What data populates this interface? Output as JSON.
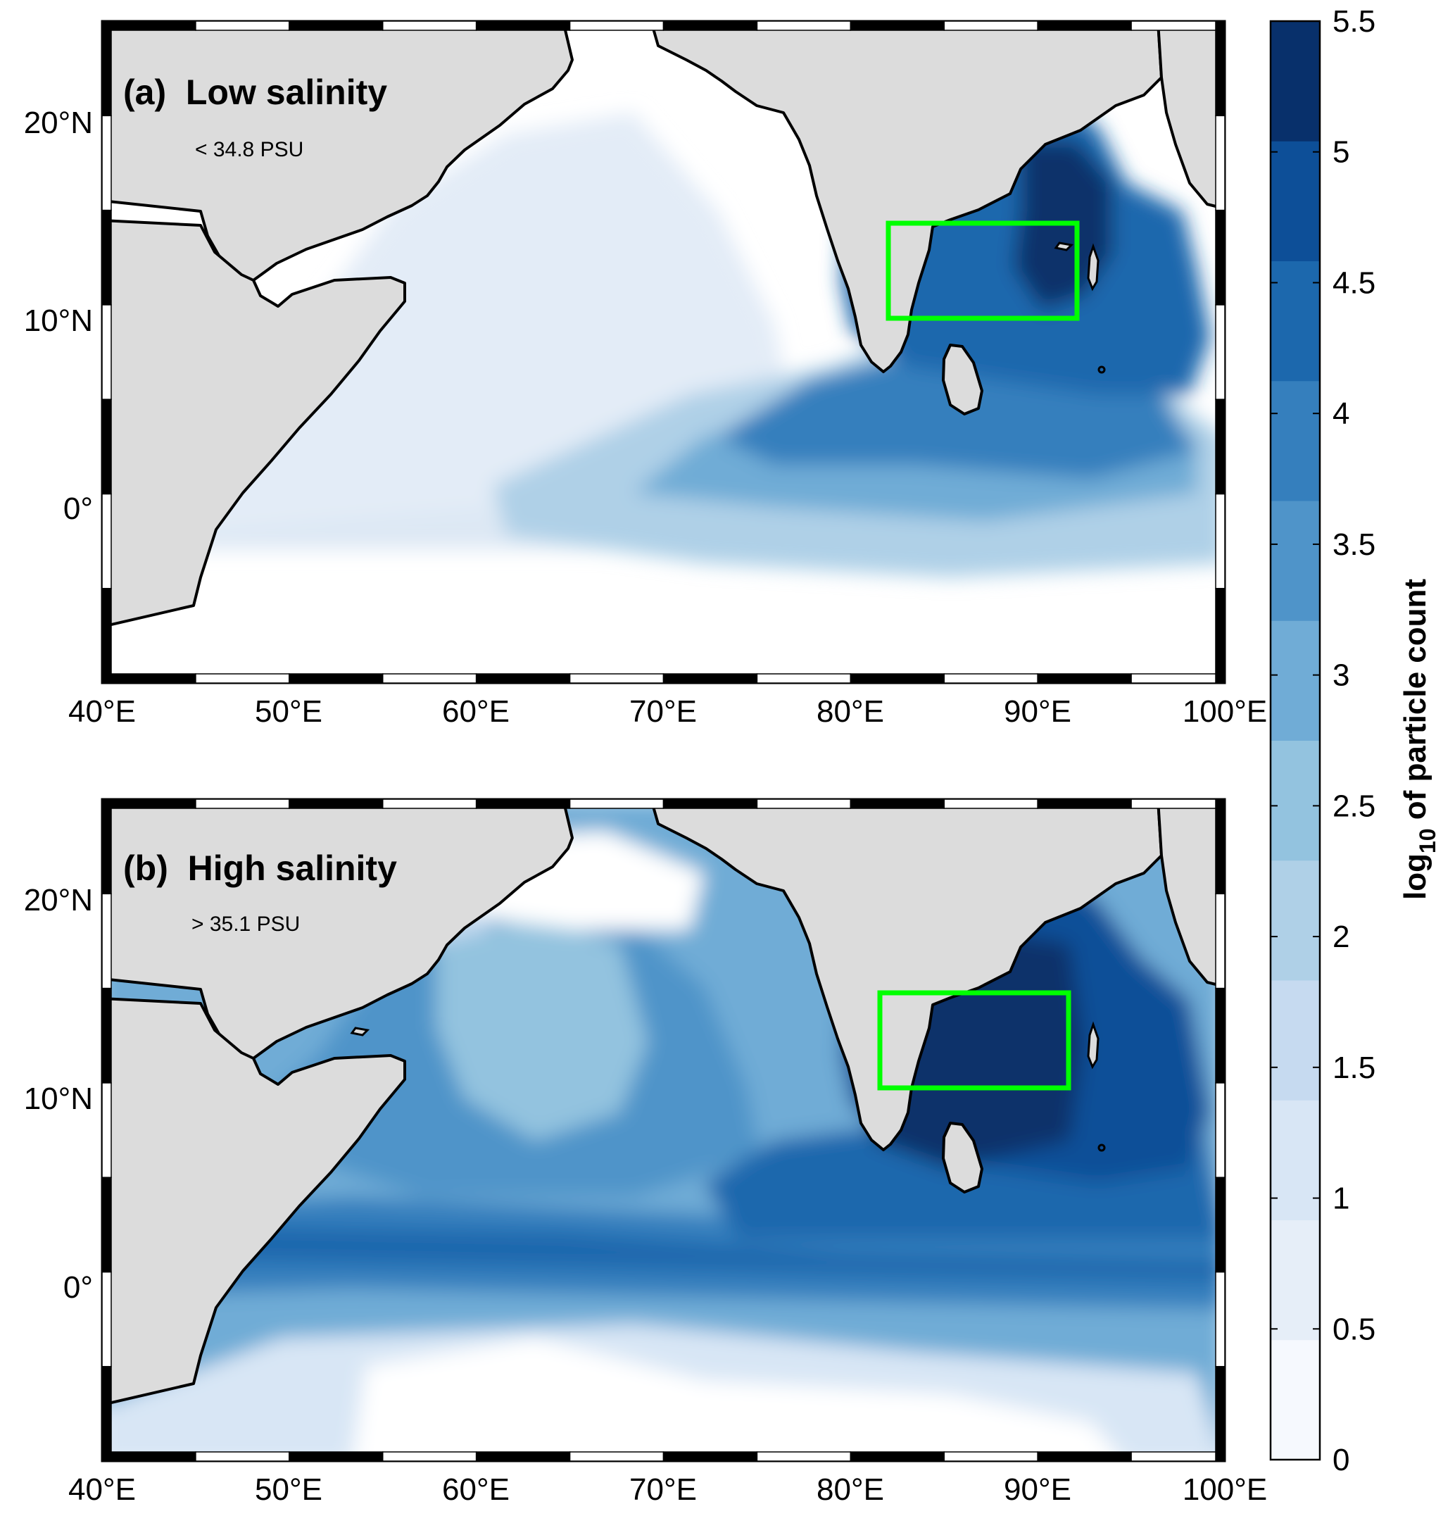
{
  "panels": [
    {
      "title": "(a)  Low salinity",
      "subtitle": "< 34.8 PSU",
      "box": {
        "lon": [
          82,
          92
        ],
        "lat": [
          10,
          15
        ]
      }
    },
    {
      "title": "(b)  High salinity",
      "subtitle": "> 35.1 PSU",
      "box": {
        "lon": [
          82,
          92
        ],
        "lat": [
          10,
          15
        ]
      }
    }
  ],
  "axes": {
    "lon_ticks": [
      "40°E",
      "50°E",
      "60°E",
      "70°E",
      "80°E",
      "90°E",
      "100°E"
    ],
    "lat_ticks": [
      "20°N",
      "10°N",
      "0°"
    ],
    "lon_range": [
      40,
      100
    ],
    "lat_range": [
      -10,
      25
    ]
  },
  "colorbar": {
    "label_main": "log",
    "label_sub": "10",
    "label_rest": " of particle count",
    "ticks": [
      "0",
      "0.5",
      "1",
      "1.5",
      "2",
      "2.5",
      "3",
      "3.5",
      "4",
      "4.5",
      "5",
      "5.5"
    ],
    "colors": [
      "#f6f9fe",
      "#e6eef8",
      "#d8e6f5",
      "#c6daf0",
      "#afd0e7",
      "#93c3df",
      "#70acd6",
      "#4f94c9",
      "#357fbd",
      "#1c68ad",
      "#0d4f98",
      "#08306b"
    ]
  },
  "colors": {
    "land": "#dcdcdc",
    "ocean_low": "#ffffff",
    "box": "#00ff00",
    "coast": "#000000"
  }
}
